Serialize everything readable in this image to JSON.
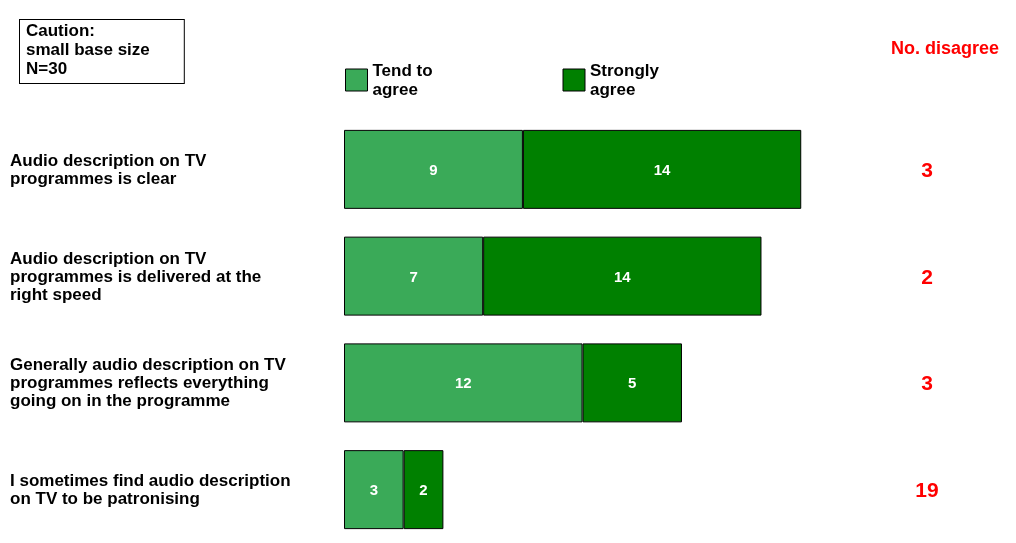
{
  "chart_data": {
    "type": "bar",
    "orientation": "horizontal",
    "stacked": true,
    "data_labels": true,
    "legend": "top",
    "categories": [
      "Audio description on TV programmes is clear",
      "Audio description on TV programmes is delivered at the right speed",
      "Generally audio description on TV programmes reflects everything going on in the programme",
      "I sometimes find audio description on TV to be patronising"
    ],
    "series": [
      {
        "name": "Tend to agree",
        "color": "#3aaa58",
        "values": [
          9,
          7,
          12,
          3
        ]
      },
      {
        "name": "Strongly agree",
        "color": "#008000",
        "values": [
          14,
          14,
          5,
          2
        ]
      }
    ],
    "annotations": [
      "Caution:\nsmall base size\nN=30",
      "No. disagree",
      "3",
      "2",
      "3",
      "19"
    ]
  }
}
